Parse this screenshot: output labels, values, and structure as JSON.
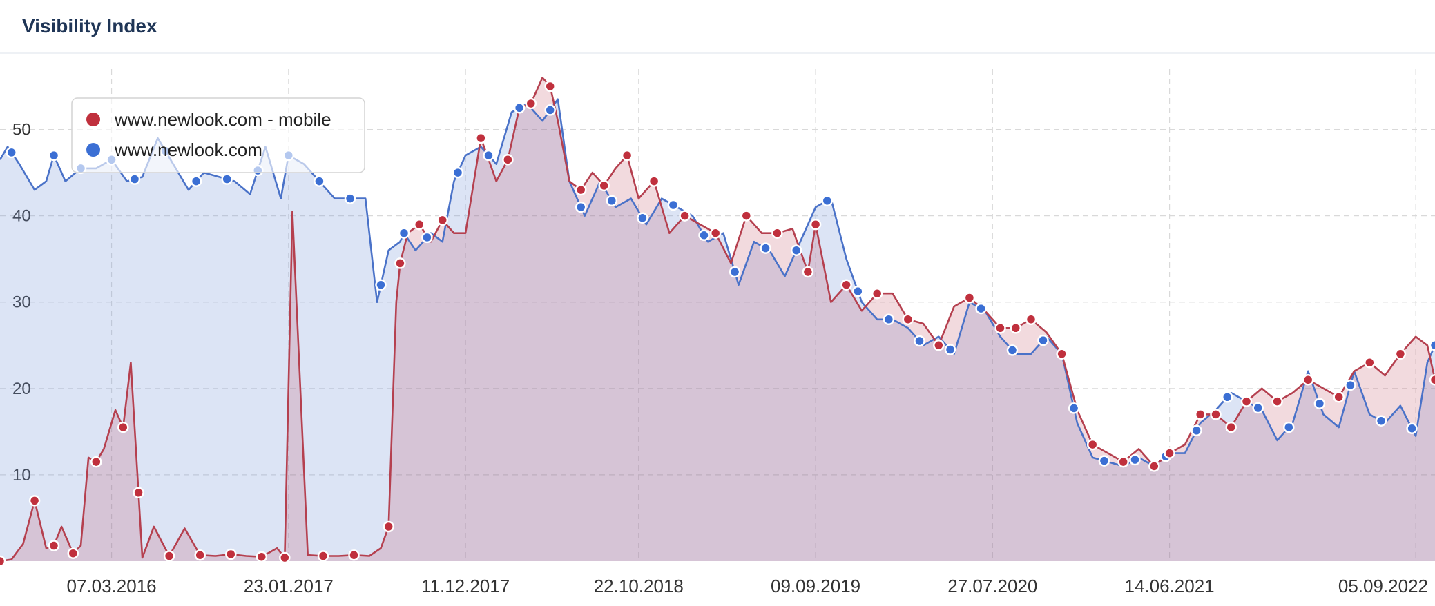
{
  "header": {
    "title": "Visibility Index"
  },
  "chart_data": {
    "type": "area",
    "title": "Visibility Index",
    "xlabel": "",
    "ylabel": "",
    "ylim": [
      0,
      57
    ],
    "yticks": [
      10,
      20,
      30,
      40,
      50
    ],
    "xlim": [
      "2015-08-17",
      "2022-10-10"
    ],
    "xticks": [
      "07.03.2016",
      "23.01.2017",
      "11.12.2017",
      "22.10.2018",
      "09.09.2019",
      "27.07.2020",
      "14.06.2021",
      "05.09.2022"
    ],
    "xtick_dates": [
      "2016-03-07",
      "2017-01-23",
      "2017-12-11",
      "2018-10-22",
      "2019-09-09",
      "2020-07-27",
      "2021-06-14",
      "2022-09-05"
    ],
    "grid": true,
    "legend": {
      "position": "top-left"
    },
    "colors": {
      "mobile": "#b5404f",
      "desktop": "#4a72c8",
      "mobile_dot": "#c0303d",
      "desktop_dot": "#3b6fd4"
    },
    "series": [
      {
        "name": "www.newlook.com - mobile",
        "color": "#b5404f",
        "x": [
          "2015-08-17",
          "2015-09-07",
          "2015-09-28",
          "2015-10-19",
          "2015-11-09",
          "2015-11-23",
          "2015-12-07",
          "2015-12-28",
          "2016-01-11",
          "2016-01-25",
          "2016-02-08",
          "2016-02-22",
          "2016-03-14",
          "2016-03-28",
          "2016-04-11",
          "2016-05-02",
          "2016-05-23",
          "2016-06-20",
          "2016-07-18",
          "2016-08-15",
          "2016-09-12",
          "2016-10-10",
          "2016-11-07",
          "2016-12-05",
          "2017-01-02",
          "2017-01-16",
          "2017-01-30",
          "2017-02-27",
          "2017-03-27",
          "2017-04-24",
          "2017-05-22",
          "2017-06-19",
          "2017-07-10",
          "2017-07-24",
          "2017-08-07",
          "2017-08-14",
          "2017-08-28",
          "2017-09-18",
          "2017-10-09",
          "2017-10-30",
          "2017-11-20",
          "2017-12-11",
          "2018-01-08",
          "2018-02-05",
          "2018-02-26",
          "2018-03-19",
          "2018-04-09",
          "2018-04-30",
          "2018-05-14",
          "2018-05-28",
          "2018-06-18",
          "2018-07-09",
          "2018-07-30",
          "2018-08-20",
          "2018-09-10",
          "2018-10-01",
          "2018-10-22",
          "2018-11-19",
          "2018-12-17",
          "2019-01-14",
          "2019-02-11",
          "2019-03-11",
          "2019-04-08",
          "2019-05-06",
          "2019-06-03",
          "2019-07-01",
          "2019-07-29",
          "2019-08-26",
          "2019-09-09",
          "2019-10-07",
          "2019-11-04",
          "2019-12-02",
          "2019-12-30",
          "2020-01-27",
          "2020-02-24",
          "2020-03-23",
          "2020-04-20",
          "2020-05-18",
          "2020-06-15",
          "2020-07-13",
          "2020-08-10",
          "2020-09-07",
          "2020-10-05",
          "2020-11-02",
          "2020-11-30",
          "2020-12-28",
          "2021-01-25",
          "2021-02-22",
          "2021-03-22",
          "2021-04-19",
          "2021-05-17",
          "2021-06-14",
          "2021-07-12",
          "2021-08-09",
          "2021-09-06",
          "2021-10-04",
          "2021-11-01",
          "2021-11-29",
          "2021-12-27",
          "2022-01-24",
          "2022-02-21",
          "2022-03-21",
          "2022-04-18",
          "2022-05-16",
          "2022-06-13",
          "2022-07-11",
          "2022-08-08",
          "2022-09-05",
          "2022-09-26",
          "2022-10-10"
        ],
        "values": [
          0,
          0.2,
          2,
          7,
          1.5,
          1.8,
          4,
          0.9,
          1.8,
          12,
          11.5,
          13,
          17.5,
          15.5,
          23,
          0.4,
          4,
          0.6,
          3.8,
          0.7,
          0.6,
          0.8,
          0.6,
          0.5,
          1.5,
          0.4,
          40.5,
          0.7,
          0.6,
          0.6,
          0.7,
          0.6,
          1.5,
          4,
          30,
          34.5,
          38,
          39,
          37,
          39.5,
          38,
          38,
          49,
          44,
          46.5,
          52.5,
          53,
          56,
          55,
          51,
          44,
          43,
          45,
          43.5,
          45.5,
          47,
          42,
          44,
          38,
          40,
          39,
          38,
          34.5,
          40,
          38,
          38,
          38.5,
          33.5,
          39,
          30,
          32,
          29,
          31,
          31,
          28,
          27.5,
          25,
          29.5,
          30.5,
          29,
          27,
          27,
          28,
          26.5,
          24,
          17.5,
          13.5,
          12.5,
          11.5,
          13,
          11,
          12.5,
          13.5,
          17,
          17,
          15.5,
          18.5,
          20,
          18.5,
          19.5,
          21,
          20,
          19,
          22,
          23,
          21.5,
          24,
          26,
          25,
          21
        ],
        "markers": [
          "2015-08-17",
          "2015-10-19",
          "2015-11-23",
          "2015-12-28",
          "2016-02-08",
          "2016-03-28",
          "2016-04-25",
          "2016-06-20",
          "2016-08-15",
          "2016-10-10",
          "2016-12-05",
          "2017-01-16",
          "2017-03-27",
          "2017-05-22",
          "2017-07-24",
          "2017-08-14",
          "2017-09-18",
          "2017-10-30",
          "2018-01-08",
          "2018-02-26",
          "2018-04-09",
          "2018-05-14",
          "2018-07-09",
          "2018-08-20",
          "2018-10-01",
          "2018-11-19",
          "2019-01-14",
          "2019-03-11",
          "2019-05-06",
          "2019-07-01",
          "2019-08-26",
          "2019-09-09",
          "2019-11-04",
          "2019-12-30",
          "2020-02-24",
          "2020-04-20",
          "2020-06-15",
          "2020-08-10",
          "2020-09-07",
          "2020-10-05",
          "2020-11-30",
          "2021-01-25",
          "2021-03-22",
          "2021-05-17",
          "2021-06-14",
          "2021-08-09",
          "2021-09-06",
          "2021-10-04",
          "2021-11-01",
          "2021-12-27",
          "2022-02-21",
          "2022-04-18",
          "2022-06-13",
          "2022-08-08",
          "2022-10-10"
        ]
      },
      {
        "name": "www.newlook.com",
        "color": "#4a72c8",
        "x": [
          "2015-08-17",
          "2015-08-31",
          "2015-09-21",
          "2015-10-19",
          "2015-11-09",
          "2015-11-23",
          "2015-12-14",
          "2016-01-11",
          "2016-02-08",
          "2016-03-07",
          "2016-04-04",
          "2016-05-02",
          "2016-05-30",
          "2016-06-27",
          "2016-07-25",
          "2016-08-22",
          "2016-09-19",
          "2016-10-17",
          "2016-11-14",
          "2016-12-12",
          "2017-01-09",
          "2017-01-23",
          "2017-02-20",
          "2017-03-20",
          "2017-04-17",
          "2017-05-15",
          "2017-06-12",
          "2017-07-03",
          "2017-07-24",
          "2017-08-14",
          "2017-08-21",
          "2017-09-11",
          "2017-10-09",
          "2017-10-30",
          "2017-11-20",
          "2017-12-11",
          "2018-01-08",
          "2018-02-05",
          "2018-03-05",
          "2018-04-02",
          "2018-04-30",
          "2018-05-28",
          "2018-06-18",
          "2018-07-16",
          "2018-08-13",
          "2018-09-10",
          "2018-10-08",
          "2018-11-05",
          "2018-12-03",
          "2018-12-31",
          "2019-01-28",
          "2019-02-25",
          "2019-03-25",
          "2019-04-22",
          "2019-05-20",
          "2019-06-17",
          "2019-07-15",
          "2019-08-12",
          "2019-09-09",
          "2019-10-07",
          "2019-11-04",
          "2019-12-02",
          "2019-12-30",
          "2020-01-27",
          "2020-02-24",
          "2020-03-23",
          "2020-04-20",
          "2020-05-18",
          "2020-06-15",
          "2020-07-13",
          "2020-08-10",
          "2020-09-07",
          "2020-10-05",
          "2020-11-02",
          "2020-11-30",
          "2020-12-28",
          "2021-01-25",
          "2021-02-22",
          "2021-03-22",
          "2021-04-19",
          "2021-05-17",
          "2021-06-14",
          "2021-07-12",
          "2021-08-09",
          "2021-09-06",
          "2021-10-04",
          "2021-11-01",
          "2021-11-29",
          "2021-12-27",
          "2022-01-24",
          "2022-02-21",
          "2022-03-21",
          "2022-04-18",
          "2022-05-16",
          "2022-06-13",
          "2022-07-11",
          "2022-08-08",
          "2022-09-05",
          "2022-09-26",
          "2022-10-10"
        ],
        "values": [
          46.5,
          48,
          46,
          43,
          44,
          47,
          44,
          45.5,
          45.5,
          46.5,
          44,
          44.5,
          49,
          46,
          43,
          45,
          44.5,
          44,
          42.5,
          48,
          42,
          47,
          46,
          44,
          42,
          42,
          42,
          30,
          36,
          37,
          38,
          36,
          38,
          37,
          44,
          47,
          48,
          46,
          52,
          53,
          51,
          53.5,
          44,
          40,
          44,
          41,
          42,
          39,
          42,
          41,
          40,
          37,
          38,
          32,
          37,
          36,
          33,
          37,
          41,
          42,
          35,
          30,
          28,
          28,
          27,
          25,
          26,
          24,
          30,
          29,
          26,
          24,
          24,
          26,
          24,
          16,
          12,
          11.5,
          11,
          12,
          11,
          12.5,
          12.5,
          16,
          17.5,
          19.5,
          18.5,
          17.5,
          14,
          16,
          22,
          17,
          15.5,
          22,
          17,
          16,
          18,
          14.5,
          23,
          25
        ],
        "markers": [
          "2015-09-07",
          "2015-11-23",
          "2016-01-11",
          "2016-03-07",
          "2016-04-18",
          "2016-06-13",
          "2016-08-08",
          "2016-10-03",
          "2016-11-28",
          "2017-01-23",
          "2017-03-20",
          "2017-05-15",
          "2017-07-10",
          "2017-08-21",
          "2017-10-02",
          "2017-11-27",
          "2018-01-22",
          "2018-03-19",
          "2018-05-14",
          "2018-07-09",
          "2018-09-03",
          "2018-10-29",
          "2018-12-24",
          "2019-02-18",
          "2019-04-15",
          "2019-06-10",
          "2019-08-05",
          "2019-09-30",
          "2019-11-25",
          "2020-01-20",
          "2020-03-16",
          "2020-05-11",
          "2020-07-06",
          "2020-09-01",
          "2020-10-27",
          "2020-12-22",
          "2021-02-15",
          "2021-04-12",
          "2021-06-07",
          "2021-08-02",
          "2021-09-27",
          "2021-11-22",
          "2022-01-17",
          "2022-03-14",
          "2022-05-09",
          "2022-07-04",
          "2022-08-29",
          "2022-10-10"
        ]
      }
    ]
  }
}
